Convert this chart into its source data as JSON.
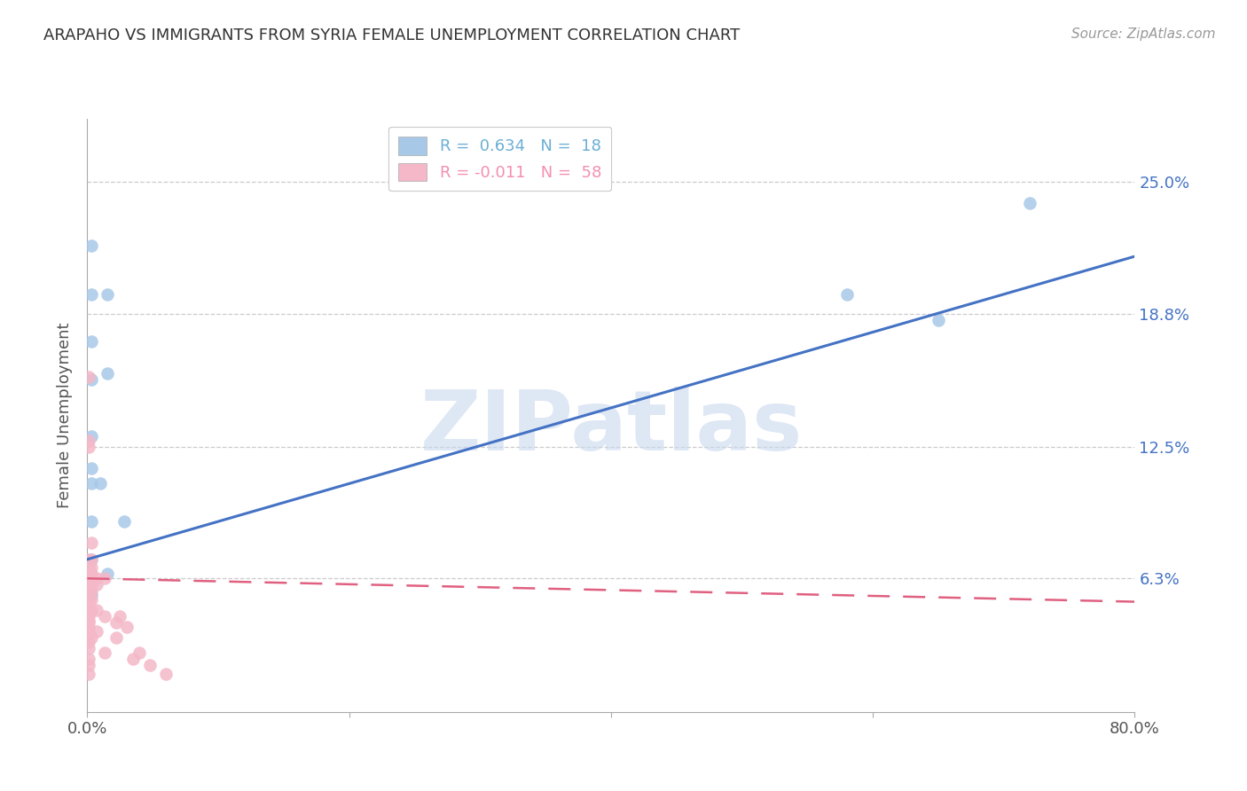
{
  "title": "ARAPAHO VS IMMIGRANTS FROM SYRIA FEMALE UNEMPLOYMENT CORRELATION CHART",
  "source": "Source: ZipAtlas.com",
  "ylabel": "Female Unemployment",
  "ytick_labels": [
    "25.0%",
    "18.8%",
    "12.5%",
    "6.3%"
  ],
  "ytick_values": [
    0.25,
    0.188,
    0.125,
    0.063
  ],
  "legend_entries": [
    {
      "label": "R =  0.634   N =  18",
      "color": "#6baed6"
    },
    {
      "label": "R = -0.011   N =  58",
      "color": "#f48fb1"
    }
  ],
  "arapaho_points": [
    [
      0.003,
      0.22
    ],
    [
      0.003,
      0.197
    ],
    [
      0.015,
      0.197
    ],
    [
      0.003,
      0.175
    ],
    [
      0.003,
      0.157
    ],
    [
      0.003,
      0.13
    ],
    [
      0.003,
      0.115
    ],
    [
      0.015,
      0.16
    ],
    [
      0.003,
      0.108
    ],
    [
      0.01,
      0.108
    ],
    [
      0.003,
      0.09
    ],
    [
      0.028,
      0.09
    ],
    [
      0.003,
      0.072
    ],
    [
      0.015,
      0.065
    ],
    [
      0.003,
      0.055
    ],
    [
      0.58,
      0.197
    ],
    [
      0.72,
      0.24
    ],
    [
      0.65,
      0.185
    ]
  ],
  "syria_points": [
    [
      0.001,
      0.158
    ],
    [
      0.001,
      0.128
    ],
    [
      0.001,
      0.125
    ],
    [
      0.001,
      0.072
    ],
    [
      0.001,
      0.068
    ],
    [
      0.001,
      0.066
    ],
    [
      0.001,
      0.063
    ],
    [
      0.001,
      0.063
    ],
    [
      0.001,
      0.063
    ],
    [
      0.001,
      0.063
    ],
    [
      0.001,
      0.063
    ],
    [
      0.001,
      0.063
    ],
    [
      0.001,
      0.06
    ],
    [
      0.001,
      0.058
    ],
    [
      0.001,
      0.057
    ],
    [
      0.001,
      0.055
    ],
    [
      0.001,
      0.055
    ],
    [
      0.001,
      0.053
    ],
    [
      0.001,
      0.052
    ],
    [
      0.001,
      0.05
    ],
    [
      0.001,
      0.048
    ],
    [
      0.001,
      0.047
    ],
    [
      0.001,
      0.045
    ],
    [
      0.001,
      0.043
    ],
    [
      0.001,
      0.042
    ],
    [
      0.001,
      0.04
    ],
    [
      0.001,
      0.038
    ],
    [
      0.001,
      0.036
    ],
    [
      0.001,
      0.033
    ],
    [
      0.001,
      0.03
    ],
    [
      0.001,
      0.025
    ],
    [
      0.001,
      0.022
    ],
    [
      0.001,
      0.018
    ],
    [
      0.003,
      0.08
    ],
    [
      0.003,
      0.072
    ],
    [
      0.003,
      0.068
    ],
    [
      0.003,
      0.065
    ],
    [
      0.003,
      0.063
    ],
    [
      0.003,
      0.06
    ],
    [
      0.003,
      0.057
    ],
    [
      0.003,
      0.053
    ],
    [
      0.003,
      0.048
    ],
    [
      0.003,
      0.035
    ],
    [
      0.007,
      0.063
    ],
    [
      0.007,
      0.06
    ],
    [
      0.007,
      0.048
    ],
    [
      0.007,
      0.038
    ],
    [
      0.013,
      0.063
    ],
    [
      0.013,
      0.045
    ],
    [
      0.013,
      0.028
    ],
    [
      0.022,
      0.042
    ],
    [
      0.022,
      0.035
    ],
    [
      0.025,
      0.045
    ],
    [
      0.03,
      0.04
    ],
    [
      0.035,
      0.025
    ],
    [
      0.04,
      0.028
    ],
    [
      0.048,
      0.022
    ],
    [
      0.06,
      0.018
    ]
  ],
  "arapaho_line": {
    "x0": 0.0,
    "y0": 0.072,
    "x1": 0.8,
    "y1": 0.215
  },
  "syria_line": {
    "x0": 0.0,
    "y0": 0.063,
    "x1": 0.8,
    "y1": 0.052
  },
  "arapaho_color": "#a8c8e8",
  "arapaho_line_color": "#4472c4",
  "syria_color": "#f4b8c8",
  "syria_line_color": "#e06080",
  "background_color": "#ffffff",
  "watermark": "ZIPatlas",
  "xlim": [
    0.0,
    0.8
  ],
  "ylim": [
    0.0,
    0.28
  ],
  "xtick_positions": [
    0.0,
    0.2,
    0.4,
    0.6,
    0.8
  ],
  "xtick_labels": [
    "0.0%",
    "",
    "",
    "",
    "80.0%"
  ]
}
